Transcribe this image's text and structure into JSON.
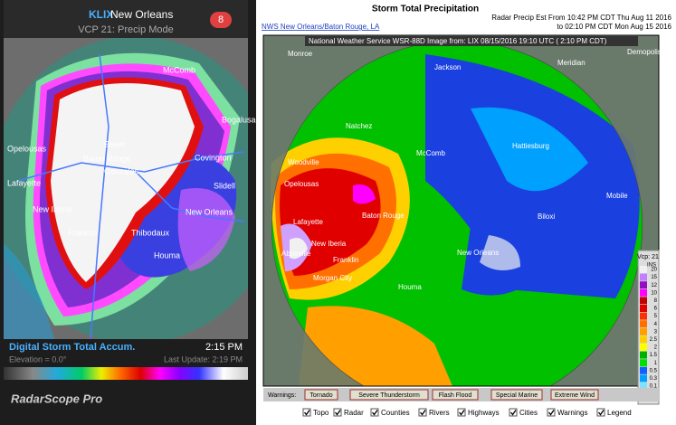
{
  "left_app": {
    "station": "KLIX",
    "station_name": "New Orleans",
    "mode": "VCP 21: Precip Mode",
    "badge": "8",
    "cities": [
      "McComb",
      "Bogalusa",
      "Baker",
      "Baton Rouge",
      "Gonzales",
      "Opelousas",
      "Covington",
      "Lafayette",
      "New Iberia",
      "Franklin",
      "Thibodaux",
      "Houma",
      "New Orleans",
      "Slidell"
    ],
    "product": "Digital Storm Total Accum.",
    "time": "2:15 PM",
    "elevation": "Elevation = 0.0°",
    "last_update": "Last Update: 2:19 PM",
    "brand": "RadarScope Pro"
  },
  "right_page": {
    "title": "Storm Total Precipitation",
    "range_from": "Radar Precip Est From 10:42 PM CDT Thu Aug 11 2016",
    "range_to": "to 02:10 PM CDT Mon Aug 15 2016",
    "office_link": "NWS New Orleans/Baton Rouge, LA",
    "image_caption": "National Weather Service WSR-88D Image from: LIX 08/15/2016 19:10 UTC ( 2:10 PM CDT)",
    "cities": [
      "Monroe",
      "Jackson",
      "Meridian",
      "Demopolis",
      "Natchez",
      "McComb",
      "Hattiesburg",
      "Woodville",
      "Opelousas",
      "Lafayette",
      "Baton Rouge",
      "New Iberia",
      "Franklin",
      "Abbeville",
      "Morgan City",
      "Houma",
      "New Orleans",
      "Biloxi",
      "Mobile"
    ],
    "legend": {
      "vcp": "Vcp: 21",
      "units": "INS",
      "items": [
        {
          "label": "20",
          "color": "#f0f0f0"
        },
        {
          "label": "15",
          "color": "#c080ff"
        },
        {
          "label": "12",
          "color": "#9010c0"
        },
        {
          "label": "10",
          "color": "#ff00ff"
        },
        {
          "label": "8",
          "color": "#c00000"
        },
        {
          "label": "6",
          "color": "#e00000"
        },
        {
          "label": "5",
          "color": "#ff3000"
        },
        {
          "label": "4",
          "color": "#ff7000"
        },
        {
          "label": "3",
          "color": "#ffa000"
        },
        {
          "label": "2.5",
          "color": "#ffd000"
        },
        {
          "label": "2",
          "color": "#ffff00"
        },
        {
          "label": "1.5",
          "color": "#00b000"
        },
        {
          "label": "1",
          "color": "#00e000"
        },
        {
          "label": "0.5",
          "color": "#1060ff"
        },
        {
          "label": "0.3",
          "color": "#00a0ff"
        },
        {
          "label": "0.1",
          "color": "#80e0ff"
        },
        {
          "label": "ND",
          "color": "#c0c0c0"
        }
      ]
    },
    "warnings_label": "Warnings:",
    "warnings": [
      "Tornado",
      "Severe Thunderstorm",
      "Flash Flood",
      "Special Marine",
      "Extreme Wind"
    ],
    "layers": [
      "Topo",
      "Radar",
      "Counties",
      "Rivers",
      "Highways",
      "Cities",
      "Warnings",
      "Legend"
    ]
  }
}
